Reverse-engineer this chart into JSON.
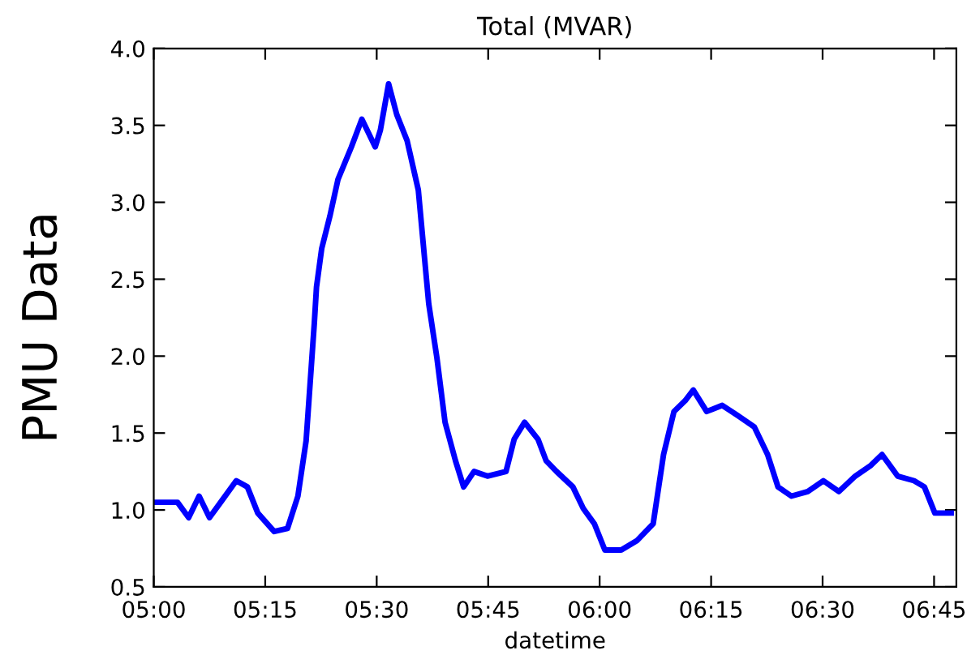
{
  "chart_data": {
    "type": "line",
    "title": "Total (MVAR)",
    "xlabel": "datetime",
    "ylabel": "PMU Data",
    "series": [
      {
        "color": "#0000ff",
        "x": [
          5.0,
          5.0533,
          5.0783,
          5.1017,
          5.125,
          5.15,
          5.185,
          5.21,
          5.2333,
          5.27,
          5.3,
          5.3233,
          5.3417,
          5.36,
          5.365,
          5.3767,
          5.395,
          5.4133,
          5.4433,
          5.4667,
          5.4967,
          5.5083,
          5.5267,
          5.545,
          5.5683,
          5.5933,
          5.6167,
          5.635,
          5.6533,
          5.6767,
          5.695,
          5.7183,
          5.7483,
          5.79,
          5.8083,
          5.8317,
          5.8617,
          5.88,
          5.9033,
          5.94,
          5.9633,
          5.9883,
          6.0117,
          6.0483,
          6.0833,
          6.12,
          6.1433,
          6.1667,
          6.1917,
          6.21,
          6.24,
          6.275,
          6.3117,
          6.3467,
          6.3767,
          6.4,
          6.43,
          6.4667,
          6.5017,
          6.5367,
          6.5733,
          6.6083,
          6.6333,
          6.6683,
          6.705,
          6.7283,
          6.7517,
          6.7883
        ],
        "values": [
          1.05,
          1.05,
          0.95,
          1.09,
          0.95,
          1.05,
          1.19,
          1.15,
          0.98,
          0.86,
          0.88,
          1.09,
          1.45,
          2.21,
          2.45,
          2.7,
          2.91,
          3.15,
          3.36,
          3.54,
          3.36,
          3.47,
          3.77,
          3.57,
          3.4,
          3.08,
          2.34,
          1.99,
          1.57,
          1.32,
          1.15,
          1.25,
          1.22,
          1.25,
          1.46,
          1.57,
          1.46,
          1.32,
          1.25,
          1.15,
          1.01,
          0.91,
          0.74,
          0.74,
          0.8,
          0.91,
          1.36,
          1.64,
          1.71,
          1.78,
          1.64,
          1.68,
          1.61,
          1.54,
          1.36,
          1.15,
          1.09,
          1.12,
          1.19,
          1.12,
          1.22,
          1.29,
          1.36,
          1.22,
          1.19,
          1.15,
          0.98,
          0.98
        ]
      }
    ],
    "xlim": [
      5.0,
      6.8
    ],
    "xticks": [
      {
        "value": 5.0,
        "label": "05:00"
      },
      {
        "value": 5.25,
        "label": "05:15"
      },
      {
        "value": 5.5,
        "label": "05:30"
      },
      {
        "value": 5.75,
        "label": "05:45"
      },
      {
        "value": 6.0,
        "label": "06:00"
      },
      {
        "value": 6.25,
        "label": "06:15"
      },
      {
        "value": 6.5,
        "label": "06:30"
      },
      {
        "value": 6.75,
        "label": "06:45"
      }
    ],
    "ylim": [
      0.5,
      4.0
    ],
    "yticks": [
      0.5,
      {
        "value": 1,
        "label": "1.0"
      },
      1.5,
      {
        "value": 2,
        "label": "2.0"
      },
      2.5,
      {
        "value": 3,
        "label": "3.0"
      },
      3.5,
      {
        "value": 4,
        "label": "4.0"
      }
    ],
    "grid": false,
    "marker": "none",
    "line_style": "solid"
  }
}
